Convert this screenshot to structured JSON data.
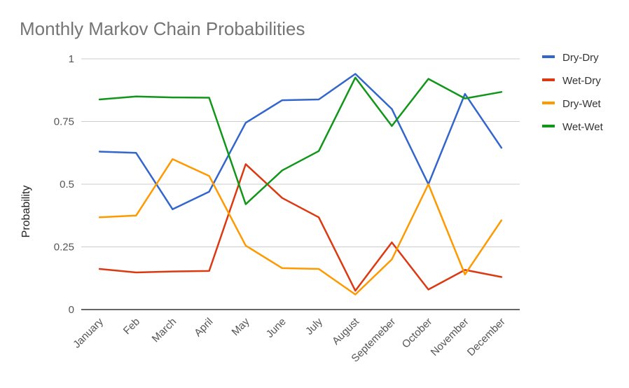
{
  "chart_data": {
    "type": "line",
    "title": "Monthly Markov Chain Probabilities",
    "xlabel": "",
    "ylabel": "Probability",
    "ylim": [
      0,
      1
    ],
    "yticks": [
      "0",
      "0.25",
      "0.5",
      "0.75",
      "1"
    ],
    "grid": true,
    "legend_position": "right",
    "categories": [
      "January",
      "Feb",
      "March",
      "April",
      "May",
      "June",
      "July",
      "August",
      "Septemeber",
      "October",
      "November",
      "December"
    ],
    "series": [
      {
        "name": "Dry-Dry",
        "color": "#3366cc",
        "values": [
          0.63,
          0.625,
          0.4,
          0.47,
          0.745,
          0.835,
          0.838,
          0.94,
          0.8,
          0.5,
          0.86,
          0.645
        ]
      },
      {
        "name": "Wet-Dry",
        "color": "#dc3912",
        "values": [
          0.162,
          0.148,
          0.152,
          0.154,
          0.58,
          0.445,
          0.368,
          0.075,
          0.268,
          0.08,
          0.158,
          0.13
        ]
      },
      {
        "name": "Dry-Wet",
        "color": "#ff9900",
        "values": [
          0.368,
          0.375,
          0.6,
          0.533,
          0.255,
          0.165,
          0.162,
          0.06,
          0.2,
          0.5,
          0.14,
          0.356
        ]
      },
      {
        "name": "Wet-Wet",
        "color": "#109618",
        "values": [
          0.838,
          0.85,
          0.846,
          0.845,
          0.42,
          0.555,
          0.632,
          0.925,
          0.732,
          0.92,
          0.842,
          0.868
        ]
      }
    ]
  }
}
